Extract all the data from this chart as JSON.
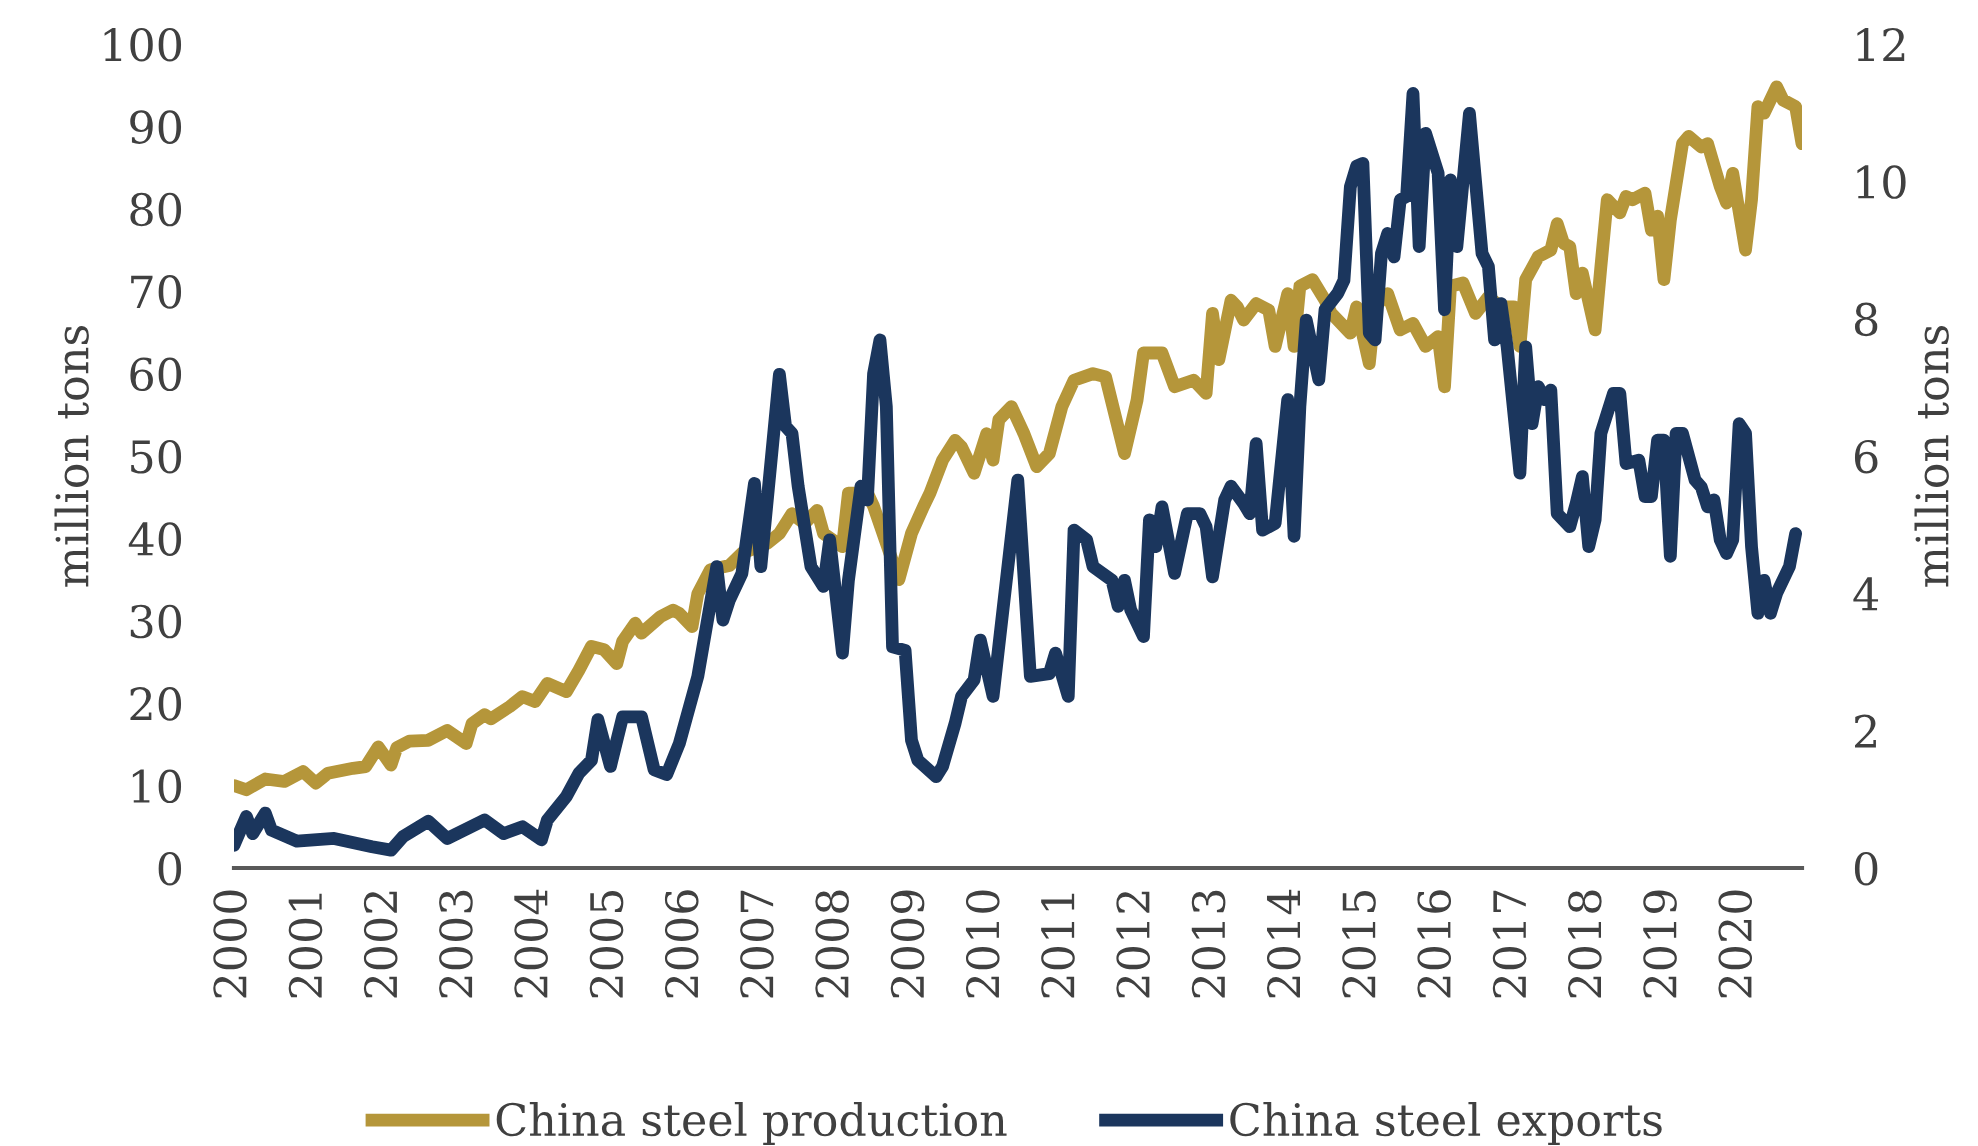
{
  "chart_data": {
    "type": "line",
    "ylabel": "million tons",
    "y2label": "million tons",
    "xlim": [
      "2000-01",
      "2020-11"
    ],
    "xticks": [
      "2000",
      "2001",
      "2002",
      "2003",
      "2004",
      "2005",
      "2006",
      "2007",
      "2008",
      "2009",
      "2010",
      "2011",
      "2012",
      "2013",
      "2014",
      "2015",
      "2016",
      "2017",
      "2018",
      "2019",
      "2020"
    ],
    "ylim": [
      0,
      100
    ],
    "yticks": [
      0,
      10,
      20,
      30,
      40,
      50,
      60,
      70,
      80,
      90,
      100
    ],
    "y2lim": [
      0,
      12
    ],
    "y2ticks": [
      0,
      2,
      4,
      6,
      8,
      10,
      12
    ],
    "grid": false,
    "legend": "bottom",
    "line_style": "solid",
    "series": [
      {
        "name": "China steel production",
        "color": "#b5963a",
        "x": [
          "2000-01",
          "2000-03",
          "2000-06",
          "2000-09",
          "2000-12",
          "2001-02",
          "2001-04",
          "2001-08",
          "2001-10",
          "2001-12",
          "2002-02",
          "2002-03",
          "2002-05",
          "2002-08",
          "2002-11",
          "2003-02",
          "2003-03",
          "2003-05",
          "2003-06",
          "2003-09",
          "2003-11",
          "2004-01",
          "2004-03",
          "2004-06",
          "2004-08",
          "2004-10",
          "2004-12",
          "2005-02",
          "2005-03",
          "2005-05",
          "2005-06",
          "2005-09",
          "2005-11",
          "2005-12",
          "2006-02",
          "2006-03",
          "2006-05",
          "2006-08",
          "2006-10",
          "2007-02",
          "2007-04",
          "2007-06",
          "2007-08",
          "2007-10",
          "2007-11",
          "2008-02",
          "2008-03",
          "2008-06",
          "2008-07",
          "2008-11",
          "2009-01",
          "2009-03",
          "2009-04",
          "2009-06",
          "2009-08",
          "2009-09",
          "2009-11",
          "2010-01",
          "2010-02",
          "2010-03",
          "2010-05",
          "2010-07",
          "2010-09",
          "2010-11",
          "2011-01",
          "2011-03",
          "2011-06",
          "2011-08",
          "2011-11",
          "2012-01",
          "2012-02",
          "2012-05",
          "2012-07",
          "2012-10",
          "2012-12",
          "2013-01",
          "2013-02",
          "2013-04",
          "2013-05",
          "2013-06",
          "2013-08",
          "2013-10",
          "2013-11",
          "2014-01",
          "2014-02",
          "2014-03",
          "2014-05",
          "2014-07",
          "2014-08",
          "2014-11",
          "2014-12",
          "2015-02",
          "2015-03",
          "2015-05",
          "2015-07",
          "2015-09",
          "2015-11",
          "2016-01",
          "2016-02",
          "2016-03",
          "2016-05",
          "2016-07",
          "2016-09",
          "2016-11",
          "2017-01",
          "2017-02",
          "2017-03",
          "2017-05",
          "2017-07",
          "2017-08",
          "2017-09",
          "2017-10",
          "2017-11",
          "2017-12",
          "2018-02",
          "2018-03",
          "2018-04",
          "2018-06",
          "2018-07",
          "2018-08",
          "2018-10",
          "2018-11",
          "2018-12",
          "2019-01",
          "2019-02",
          "2019-04",
          "2019-05",
          "2019-07",
          "2019-08",
          "2019-10",
          "2019-11",
          "2019-12",
          "2020-02",
          "2020-03",
          "2020-04",
          "2020-05",
          "2020-07",
          "2020-08",
          "2020-10",
          "2020-11"
        ],
        "values": [
          10.0,
          9.5,
          10.8,
          10.5,
          11.7,
          10.3,
          11.5,
          12.1,
          12.3,
          14.7,
          12.5,
          14.6,
          15.4,
          15.5,
          16.7,
          15.1,
          17.5,
          18.6,
          18.1,
          19.6,
          20.8,
          20.2,
          22.4,
          21.4,
          24.0,
          26.9,
          26.5,
          24.8,
          27.5,
          29.7,
          28.5,
          30.5,
          31.3,
          30.9,
          29.3,
          33.3,
          36.2,
          36.7,
          38.2,
          39.4,
          40.6,
          43.0,
          41.8,
          43.4,
          40.6,
          39.0,
          45.5,
          45.5,
          43.9,
          35.0,
          40.6,
          43.9,
          45.5,
          49.5,
          51.9,
          51.1,
          47.9,
          52.7,
          49.5,
          54.4,
          56.0,
          52.7,
          48.7,
          50.3,
          56.0,
          59.2,
          60.0,
          59.6,
          50.3,
          56.8,
          62.5,
          62.5,
          58.4,
          59.2,
          57.6,
          67.3,
          61.7,
          68.9,
          68.1,
          66.5,
          68.5,
          67.7,
          63.3,
          69.7,
          63.3,
          70.6,
          71.4,
          68.9,
          67.3,
          64.9,
          68.1,
          61.2,
          68.1,
          69.7,
          65.3,
          66.1,
          63.3,
          64.5,
          58.4,
          70.6,
          71.0,
          67.3,
          69.3,
          68.1,
          68.1,
          63.3,
          71.4,
          74.2,
          75.0,
          78.2,
          75.8,
          75.4,
          69.7,
          72.2,
          65.3,
          73.0,
          81.1,
          79.5,
          81.5,
          81.1,
          81.9,
          77.4,
          79.1,
          71.4,
          78.6,
          87.9,
          88.8,
          87.5,
          87.9,
          82.7,
          80.7,
          84.3,
          75.0,
          81.1,
          92.4,
          91.6,
          94.8,
          93.2,
          92.4,
          87.9
        ]
      },
      {
        "name": "China steel exports",
        "color": "#1b365d",
        "axis": "y2",
        "x": [
          "2000-01",
          "2000-03",
          "2000-04",
          "2000-06",
          "2000-07",
          "2000-11",
          "2001-05",
          "2001-11",
          "2002-02",
          "2002-04",
          "2002-08",
          "2002-11",
          "2003-05",
          "2003-08",
          "2003-11",
          "2004-02",
          "2004-03",
          "2004-06",
          "2004-08",
          "2004-10",
          "2004-11",
          "2005-01",
          "2005-03",
          "2005-06",
          "2005-08",
          "2005-10",
          "2005-12",
          "2006-03",
          "2006-06",
          "2006-07",
          "2006-08",
          "2006-10",
          "2006-12",
          "2007-01",
          "2007-04",
          "2007-05",
          "2007-06",
          "2007-07",
          "2007-09",
          "2007-11",
          "2007-12",
          "2008-02",
          "2008-03",
          "2008-05",
          "2008-06",
          "2008-07",
          "2008-08",
          "2008-09",
          "2008-10",
          "2008-12",
          "2009-01",
          "2009-02",
          "2009-05",
          "2009-06",
          "2009-08",
          "2009-09",
          "2009-11",
          "2009-12",
          "2010-02",
          "2010-06",
          "2010-08",
          "2010-11",
          "2010-12",
          "2011-02",
          "2011-03",
          "2011-05",
          "2011-06",
          "2011-09",
          "2011-10",
          "2011-11",
          "2011-12",
          "2012-02",
          "2012-03",
          "2012-04",
          "2012-05",
          "2012-07",
          "2012-09",
          "2012-11",
          "2012-12",
          "2013-01",
          "2013-03",
          "2013-04",
          "2013-06",
          "2013-07",
          "2013-08",
          "2013-09",
          "2013-11",
          "2014-01",
          "2014-02",
          "2014-03",
          "2014-04",
          "2014-06",
          "2014-07",
          "2014-09",
          "2014-10",
          "2014-11",
          "2014-12",
          "2015-01",
          "2015-02",
          "2015-03",
          "2015-04",
          "2015-05",
          "2015-06",
          "2015-07",
          "2015-08",
          "2015-09",
          "2015-10",
          "2015-11",
          "2016-01",
          "2016-02",
          "2016-03",
          "2016-04",
          "2016-06",
          "2016-08",
          "2016-09",
          "2016-10",
          "2016-11",
          "2016-12",
          "2017-02",
          "2017-03",
          "2017-04",
          "2017-05",
          "2017-06",
          "2017-07",
          "2017-08",
          "2017-10",
          "2017-11",
          "2017-12",
          "2018-01",
          "2018-02",
          "2018-03",
          "2018-05",
          "2018-06",
          "2018-07",
          "2018-09",
          "2018-10",
          "2018-11",
          "2018-12",
          "2019-01",
          "2019-02",
          "2019-03",
          "2019-04",
          "2019-06",
          "2019-07",
          "2019-08",
          "2019-09",
          "2019-10",
          "2019-11",
          "2019-12",
          "2020-01",
          "2020-02",
          "2020-03",
          "2020-04",
          "2020-05",
          "2020-06",
          "2020-07",
          "2020-09",
          "2020-10"
        ],
        "values": [
          0.33,
          0.75,
          0.5,
          0.8,
          0.55,
          0.39,
          0.43,
          0.31,
          0.26,
          0.46,
          0.68,
          0.43,
          0.7,
          0.5,
          0.6,
          0.41,
          0.7,
          1.04,
          1.38,
          1.57,
          2.16,
          1.48,
          2.2,
          2.2,
          1.43,
          1.36,
          1.81,
          2.79,
          4.39,
          3.61,
          3.9,
          4.29,
          5.6,
          4.39,
          7.19,
          6.43,
          6.33,
          5.56,
          4.39,
          4.1,
          4.78,
          3.13,
          4.19,
          5.56,
          5.36,
          7.2,
          7.69,
          6.72,
          3.22,
          3.17,
          1.86,
          1.57,
          1.33,
          1.48,
          2.11,
          2.5,
          2.74,
          3.32,
          2.5,
          5.65,
          2.79,
          2.83,
          3.13,
          2.5,
          4.92,
          4.78,
          4.39,
          4.19,
          3.81,
          4.19,
          3.76,
          3.37,
          5.07,
          4.68,
          5.26,
          4.29,
          5.16,
          5.16,
          4.97,
          4.24,
          5.36,
          5.56,
          5.31,
          5.16,
          6.18,
          4.92,
          5.02,
          6.82,
          4.83,
          6.72,
          7.98,
          7.11,
          8.13,
          8.37,
          8.56,
          9.92,
          10.22,
          10.26,
          7.79,
          7.69,
          8.95,
          9.24,
          8.9,
          9.73,
          9.78,
          11.28,
          9.05,
          10.7,
          10.12,
          8.13,
          10.02,
          9.05,
          10.99,
          8.95,
          8.76,
          7.69,
          8.22,
          7.59,
          5.75,
          7.59,
          6.47,
          7.01,
          6.82,
          6.96,
          5.16,
          4.97,
          5.31,
          5.7,
          4.68,
          5.07,
          6.33,
          6.91,
          6.91,
          5.89,
          5.94,
          5.41,
          5.41,
          6.23,
          6.23,
          4.54,
          6.33,
          6.33,
          5.65,
          5.55,
          5.26,
          5.36,
          4.78,
          4.58,
          4.78,
          6.47,
          6.33,
          4.68,
          3.71,
          4.19,
          3.71,
          4.0,
          4.39,
          4.87
        ]
      }
    ]
  }
}
